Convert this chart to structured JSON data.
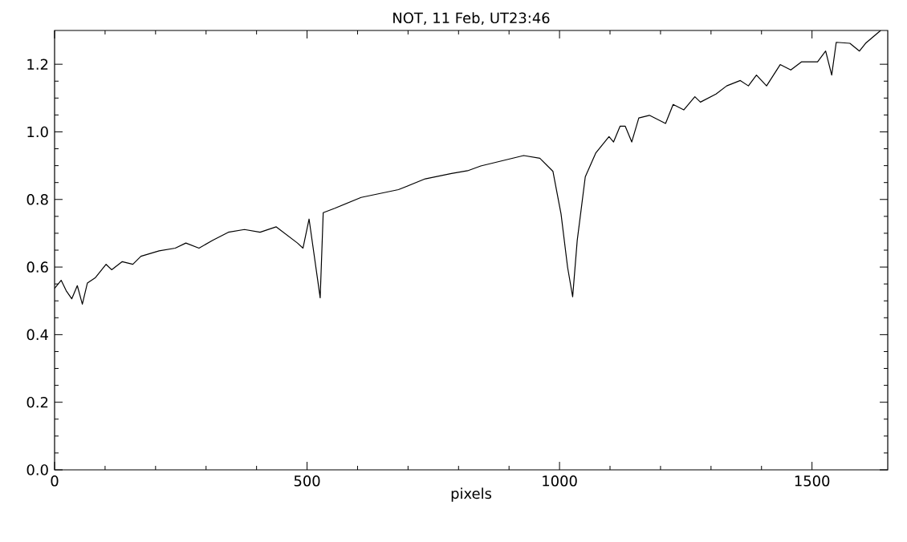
{
  "chart_data": {
    "type": "line",
    "title": "NOT, 11 Feb, UT23:46",
    "xlabel": "pixels",
    "xlim": [
      0,
      1650
    ],
    "ylim": [
      0,
      1.3
    ],
    "xticks": [
      0,
      500,
      1000,
      1500
    ],
    "yticks": [
      {
        "value": 0,
        "label": "0.0"
      },
      {
        "value": 0.2,
        "label": "0.2"
      },
      {
        "value": 0.4,
        "label": "0.4"
      },
      {
        "value": 0.6,
        "label": "0.6"
      },
      {
        "value": 0.8,
        "label": "0.8"
      },
      {
        "value": 1.0,
        "label": "1.0"
      },
      {
        "value": 1.2,
        "label": "1.2"
      }
    ],
    "grid": false,
    "marker": "none",
    "line_style": "solid",
    "series": [
      {
        "color": "#000000",
        "x": [
          0,
          13,
          23,
          34,
          45,
          55,
          65,
          81,
          102,
          113,
          134,
          155,
          171,
          207,
          239,
          260,
          286,
          313,
          344,
          376,
          407,
          439,
          460,
          481,
          492,
          504,
          526,
          532,
          555,
          607,
          681,
          734,
          786,
          818,
          844,
          929,
          961,
          987,
          1003,
          1016,
          1026,
          1035,
          1051,
          1072,
          1098,
          1107,
          1120,
          1130,
          1143,
          1157,
          1178,
          1210,
          1225,
          1246,
          1268,
          1279,
          1310,
          1331,
          1358,
          1374,
          1390,
          1410,
          1437,
          1458,
          1479,
          1511,
          1527,
          1539,
          1548,
          1575,
          1594,
          1606,
          1628,
          1636
        ],
        "values": [
          0.537,
          0.561,
          0.53,
          0.506,
          0.545,
          0.49,
          0.553,
          0.569,
          0.608,
          0.592,
          0.616,
          0.608,
          0.632,
          0.648,
          0.656,
          0.671,
          0.656,
          0.679,
          0.703,
          0.711,
          0.703,
          0.719,
          0.695,
          0.671,
          0.656,
          0.742,
          0.509,
          0.761,
          0.774,
          0.806,
          0.829,
          0.861,
          0.877,
          0.885,
          0.899,
          0.93,
          0.922,
          0.883,
          0.757,
          0.599,
          0.512,
          0.678,
          0.867,
          0.938,
          0.986,
          0.97,
          1.017,
          1.017,
          0.97,
          1.041,
          1.049,
          1.025,
          1.081,
          1.065,
          1.104,
          1.088,
          1.112,
          1.136,
          1.152,
          1.136,
          1.168,
          1.136,
          1.199,
          1.183,
          1.207,
          1.207,
          1.239,
          1.168,
          1.265,
          1.262,
          1.239,
          1.262,
          1.29,
          1.3
        ]
      }
    ]
  }
}
